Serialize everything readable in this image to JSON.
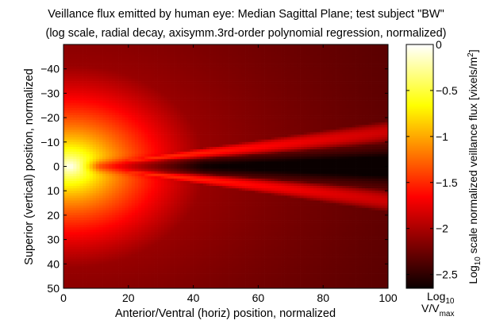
{
  "chart_data": {
    "type": "heatmap",
    "title_line1": "Veillance flux emitted by human eye:    Median Sagittal Plane;  test subject \"BW\"",
    "title_line2": "(log scale, radial decay, axisymm.3rd-order polynomial regression, normalized)",
    "xlabel": "Anterior/Ventral (horiz) position, normalized",
    "ylabel": "Superior (vertical) position, normalized",
    "xlim": [
      0,
      100
    ],
    "ylim": [
      50,
      -50
    ],
    "y_axis_reversed": true,
    "xticks": [
      0,
      20,
      40,
      60,
      80,
      100
    ],
    "yticks": [
      -40,
      -30,
      -20,
      -10,
      0,
      10,
      20,
      30,
      40,
      50
    ],
    "colorbar": {
      "colormap": "hot",
      "clim": [
        -2.65,
        0
      ],
      "ticks": [
        0,
        -0.5,
        -1,
        -1.5,
        -2,
        -2.5
      ],
      "label_parts": {
        "pre": "Log",
        "sub": "10",
        "mid": " scale normalized veillance flux [vixels/m",
        "sup": "2",
        "post": "]"
      },
      "bottom_label": {
        "line1_main": "Log",
        "line1_sub": "10",
        "line2_main": "V/V",
        "line2_sub": "max"
      }
    },
    "beam": {
      "origin": [
        2,
        0
      ],
      "peak_log": 0,
      "edge_log": -2.65,
      "notes": "bright source at eye (x≈2,y=0), wedge-shaped emission spreading right, dark gap along the axis beyond x≈5"
    }
  }
}
